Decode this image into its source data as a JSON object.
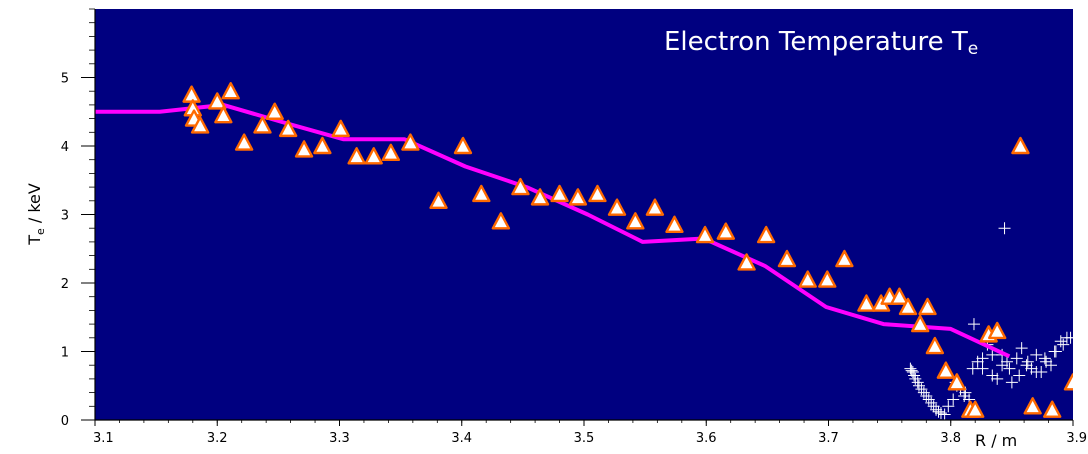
{
  "chart_data": {
    "type": "scatter",
    "title": "Electron Temperature T",
    "title_sub": "e",
    "xlabel": "R / m",
    "ylabel_main": "T",
    "ylabel_sub": "e",
    "ylabel_rest": " / keV",
    "xlim": [
      3.1,
      3.9
    ],
    "ylim": [
      0,
      6
    ],
    "xticks": [
      "3.1",
      "3.2",
      "3.3",
      "3.4",
      "3.5",
      "3.6",
      "3.7",
      "3.8",
      "3.9"
    ],
    "yticks": [
      "0",
      "1",
      "2",
      "3",
      "4",
      "5"
    ],
    "background": "#000080",
    "grid": false,
    "series": [
      {
        "marker": "triangle",
        "color": "#ff6a00",
        "x": [
          3.179,
          3.18,
          3.181,
          3.186,
          3.2,
          3.205,
          3.211,
          3.222,
          3.237,
          3.247,
          3.258,
          3.271,
          3.286,
          3.301,
          3.314,
          3.328,
          3.342,
          3.358,
          3.381,
          3.401,
          3.416,
          3.432,
          3.448,
          3.464,
          3.48,
          3.495,
          3.511,
          3.527,
          3.542,
          3.558,
          3.574,
          3.599,
          3.616,
          3.633,
          3.649,
          3.666,
          3.683,
          3.699,
          3.713,
          3.731,
          3.743,
          3.75,
          3.758,
          3.765,
          3.775,
          3.781,
          3.787,
          3.796,
          3.805,
          3.816,
          3.82,
          3.831,
          3.838,
          3.857,
          3.867,
          3.883,
          3.9
        ],
        "y": [
          4.75,
          4.55,
          4.4,
          4.3,
          4.65,
          4.45,
          4.8,
          4.05,
          4.3,
          4.5,
          4.25,
          3.95,
          4.0,
          4.25,
          3.85,
          3.85,
          3.9,
          4.05,
          3.2,
          4.0,
          3.3,
          2.9,
          3.4,
          3.25,
          3.3,
          3.25,
          3.3,
          3.1,
          2.9,
          3.1,
          2.85,
          2.7,
          2.75,
          2.3,
          2.7,
          2.35,
          2.05,
          2.05,
          2.35,
          1.7,
          1.7,
          1.8,
          1.8,
          1.65,
          1.4,
          1.65,
          1.08,
          0.72,
          0.55,
          0.15,
          0.15,
          1.25,
          1.3,
          4.0,
          0.2,
          0.15,
          0.55
        ]
      },
      {
        "marker": "cross",
        "color": "#ffffff",
        "x": [
          3.767,
          3.768,
          3.769,
          3.77,
          3.771,
          3.773,
          3.774,
          3.776,
          3.778,
          3.78,
          3.782,
          3.784,
          3.786,
          3.788,
          3.79,
          3.792,
          3.795,
          3.798,
          3.802,
          3.805,
          3.808,
          3.811,
          3.815,
          3.819,
          3.822,
          3.826,
          3.83,
          3.834,
          3.838,
          3.842,
          3.846,
          3.85,
          3.854,
          3.858,
          3.862,
          3.866,
          3.87,
          3.874,
          3.878,
          3.882,
          3.886,
          3.89,
          3.895,
          3.804,
          3.812,
          3.818,
          3.826,
          3.834,
          3.842,
          3.848,
          3.856,
          3.863,
          3.87,
          3.877,
          3.885,
          3.892,
          3.898,
          3.844
        ],
        "y": [
          0.75,
          0.72,
          0.7,
          0.65,
          0.6,
          0.55,
          0.5,
          0.45,
          0.4,
          0.35,
          0.3,
          0.25,
          0.2,
          0.15,
          0.12,
          0.1,
          0.08,
          0.2,
          0.3,
          0.5,
          0.45,
          0.35,
          0.3,
          1.4,
          0.85,
          0.75,
          1.1,
          0.65,
          0.6,
          0.95,
          0.85,
          0.55,
          0.9,
          1.05,
          0.8,
          0.75,
          0.95,
          0.7,
          0.85,
          0.8,
          1.0,
          1.15,
          1.2,
          0.55,
          0.4,
          0.75,
          0.9,
          0.95,
          0.8,
          0.75,
          0.65,
          0.85,
          0.7,
          0.9,
          1.0,
          1.1,
          1.2,
          2.8
        ]
      },
      {
        "marker": "line",
        "color": "#ff00ff",
        "x": [
          3.1,
          3.153,
          3.205,
          3.253,
          3.303,
          3.353,
          3.403,
          3.453,
          3.503,
          3.548,
          3.598,
          3.648,
          3.698,
          3.745,
          3.8,
          3.848
        ],
        "y": [
          4.5,
          4.5,
          4.6,
          4.35,
          4.1,
          4.1,
          3.7,
          3.4,
          3.0,
          2.6,
          2.65,
          2.25,
          1.65,
          1.4,
          1.33,
          0.93
        ]
      }
    ]
  }
}
